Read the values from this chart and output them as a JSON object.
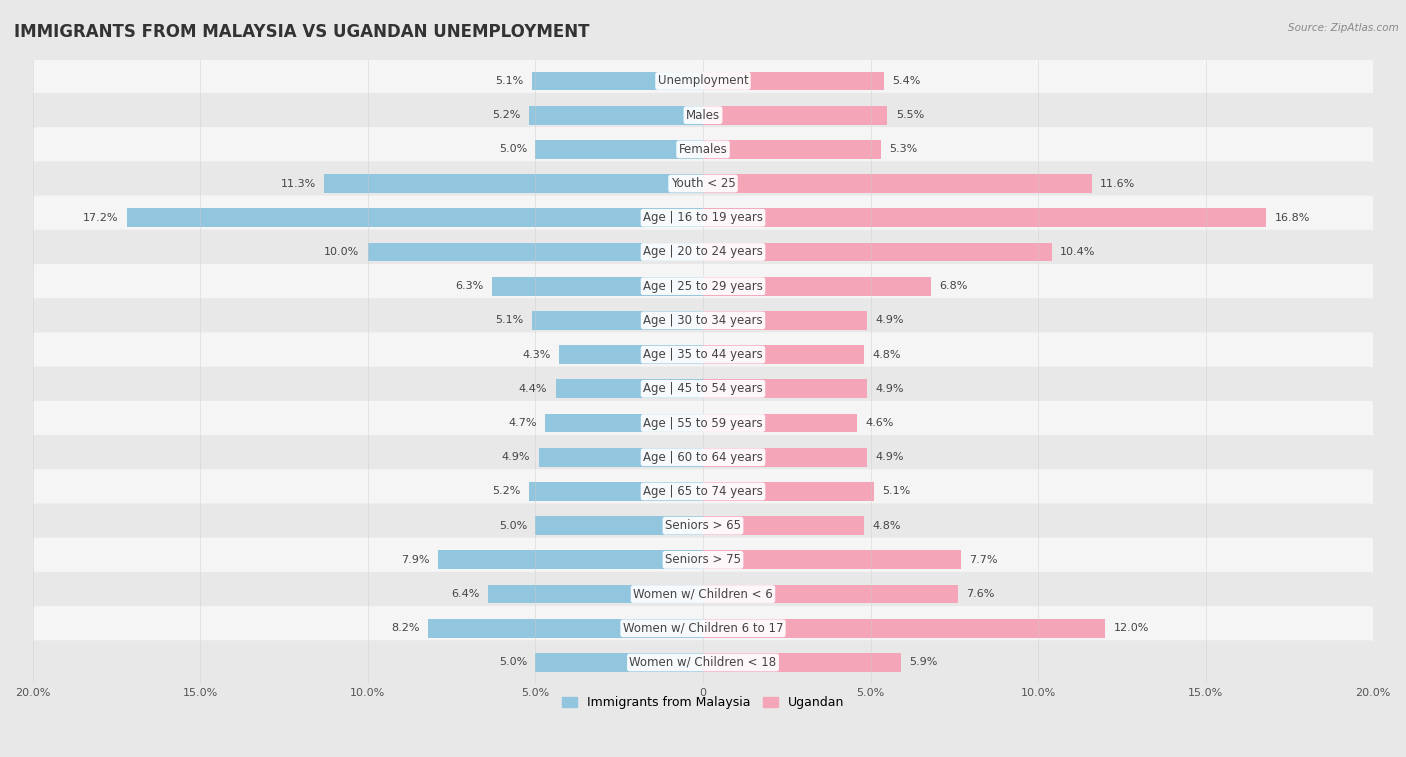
{
  "title": "IMMIGRANTS FROM MALAYSIA VS UGANDAN UNEMPLOYMENT",
  "source": "Source: ZipAtlas.com",
  "categories": [
    "Unemployment",
    "Males",
    "Females",
    "Youth < 25",
    "Age | 16 to 19 years",
    "Age | 20 to 24 years",
    "Age | 25 to 29 years",
    "Age | 30 to 34 years",
    "Age | 35 to 44 years",
    "Age | 45 to 54 years",
    "Age | 55 to 59 years",
    "Age | 60 to 64 years",
    "Age | 65 to 74 years",
    "Seniors > 65",
    "Seniors > 75",
    "Women w/ Children < 6",
    "Women w/ Children 6 to 17",
    "Women w/ Children < 18"
  ],
  "left_values": [
    5.1,
    5.2,
    5.0,
    11.3,
    17.2,
    10.0,
    6.3,
    5.1,
    4.3,
    4.4,
    4.7,
    4.9,
    5.2,
    5.0,
    7.9,
    6.4,
    8.2,
    5.0
  ],
  "right_values": [
    5.4,
    5.5,
    5.3,
    11.6,
    16.8,
    10.4,
    6.8,
    4.9,
    4.8,
    4.9,
    4.6,
    4.9,
    5.1,
    4.8,
    7.7,
    7.6,
    12.0,
    5.9
  ],
  "left_color": "#92c5de",
  "right_color": "#f4a6b8",
  "left_label": "Immigrants from Malaysia",
  "right_label": "Ugandan",
  "axis_max": 20.0,
  "background_color": "#e8e8e8",
  "row_color_even": "#f5f5f5",
  "row_color_odd": "#e8e8e8",
  "title_fontsize": 12,
  "label_fontsize": 8.5,
  "value_fontsize": 8
}
